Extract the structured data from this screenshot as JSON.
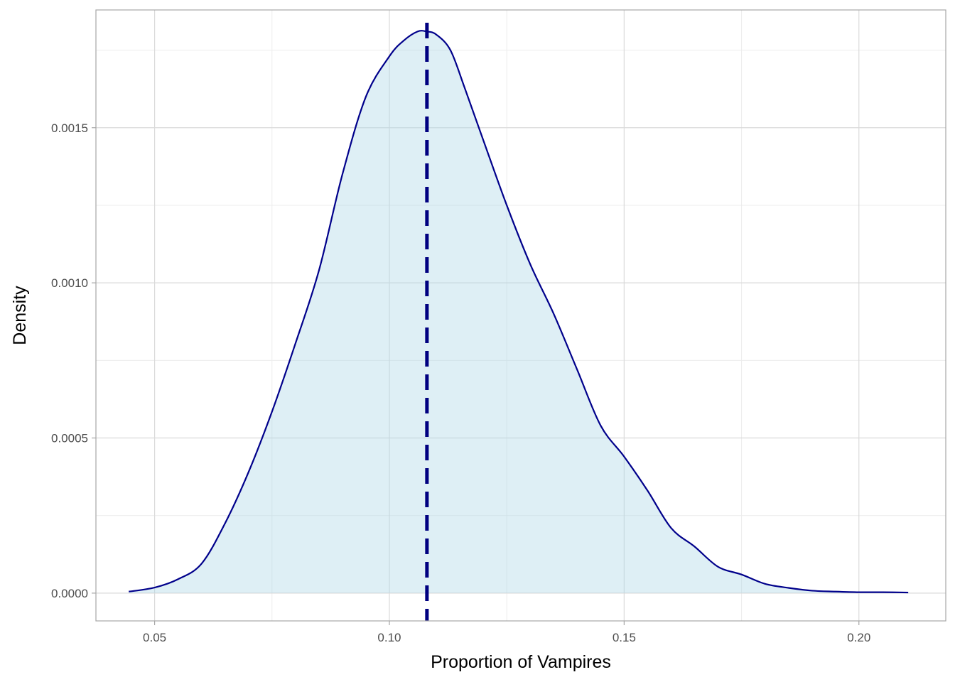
{
  "chart_data": {
    "type": "area",
    "title": "",
    "xlabel": "Proportion of Vampires",
    "ylabel": "Density",
    "xlim": [
      0.0375,
      0.2185
    ],
    "ylim": [
      -8.95e-05,
      0.0018795
    ],
    "x_ticks": [
      0.05,
      0.1,
      0.15,
      0.2
    ],
    "x_tick_labels": [
      "0.05",
      "0.10",
      "0.15",
      "0.20"
    ],
    "y_ticks": [
      0.0,
      0.0005,
      0.001,
      0.0015
    ],
    "y_tick_labels": [
      "0.0000",
      "0.0005",
      "0.0010",
      "0.0015"
    ],
    "grid": true,
    "legend": "none",
    "series": [
      {
        "style": "density-curve",
        "x": [
          0.0445,
          0.05,
          0.055,
          0.06,
          0.065,
          0.07,
          0.075,
          0.08,
          0.085,
          0.09,
          0.095,
          0.1,
          0.103,
          0.106,
          0.108,
          0.11,
          0.113,
          0.116,
          0.12,
          0.125,
          0.13,
          0.135,
          0.14,
          0.145,
          0.15,
          0.155,
          0.16,
          0.165,
          0.17,
          0.175,
          0.18,
          0.185,
          0.19,
          0.195,
          0.2,
          0.205,
          0.2105
        ],
        "y": [
          5e-06,
          1.8e-05,
          4.5e-05,
          9.5e-05,
          0.000225,
          0.00039,
          0.000585,
          0.000805,
          0.00104,
          0.00135,
          0.0016,
          0.00173,
          0.00178,
          0.00181,
          0.00181,
          0.0018,
          0.00175,
          0.00163,
          0.00146,
          0.00125,
          0.00106,
          0.0009,
          0.00072,
          0.00054,
          0.00044,
          0.00033,
          0.00021,
          0.00015,
          8.5e-05,
          6e-05,
          3e-05,
          1.7e-05,
          8e-06,
          5e-06,
          3e-06,
          3e-06,
          2e-06
        ]
      }
    ],
    "reference_line": {
      "style": "dashed-vertical",
      "x": 0.108
    },
    "colors": {
      "fill": "#ADD8E6",
      "fill_opacity": 0.4,
      "curve": "#00008B",
      "reference_line": "#000080",
      "panel_border": "#a6a6a6",
      "grid_major": "#dadada",
      "grid_minor": "#ececec"
    }
  }
}
